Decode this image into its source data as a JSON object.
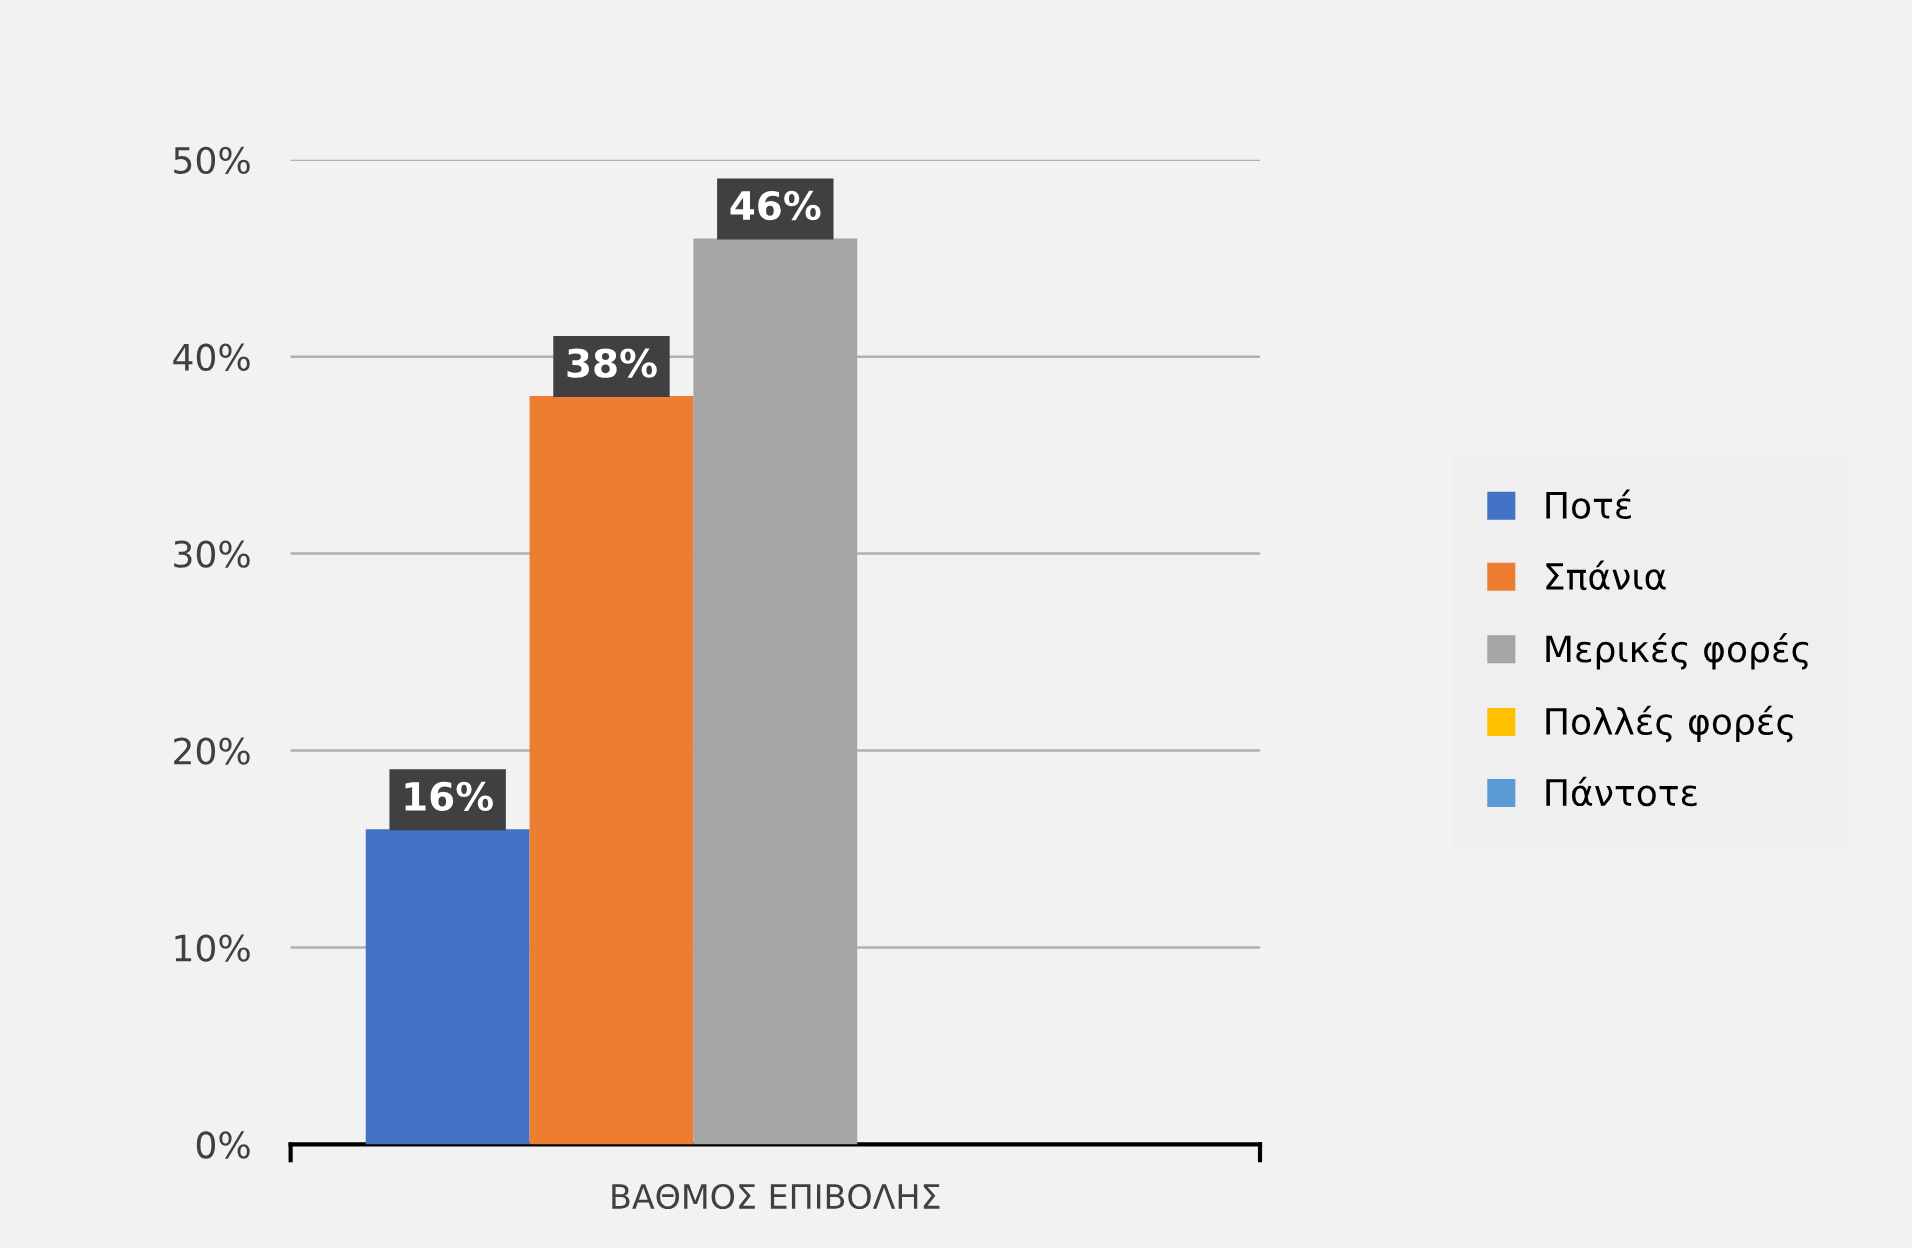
{
  "chart_data": {
    "type": "bar",
    "categories": [
      "ΒΑΘΜΟΣ ΕΠΙΒΟΛΗΣ"
    ],
    "series": [
      {
        "name": "Ποτέ",
        "color": "#4472c4",
        "values": [
          16
        ],
        "value_labels": [
          "16%"
        ]
      },
      {
        "name": "Σπάνια",
        "color": "#ed7d31",
        "values": [
          38
        ],
        "value_labels": [
          "38%"
        ]
      },
      {
        "name": "Μερικές φορές",
        "color": "#a5a5a5",
        "values": [
          46
        ],
        "value_labels": [
          "46%"
        ]
      },
      {
        "name": "Πολλές φορές",
        "color": "#ffc000",
        "values": [
          0
        ],
        "value_labels": [
          null
        ]
      },
      {
        "name": "Πάντοτε",
        "color": "#5b9bd5",
        "values": [
          0
        ],
        "value_labels": [
          null
        ]
      }
    ],
    "ylim": [
      0,
      50
    ],
    "yticks": [
      {
        "value": 0,
        "label": "0%"
      },
      {
        "value": 10,
        "label": "10%"
      },
      {
        "value": 20,
        "label": "20%"
      },
      {
        "value": 30,
        "label": "30%"
      },
      {
        "value": 40,
        "label": "40%"
      },
      {
        "value": 50,
        "label": "50%"
      }
    ],
    "grid": "y",
    "legend": "right"
  }
}
